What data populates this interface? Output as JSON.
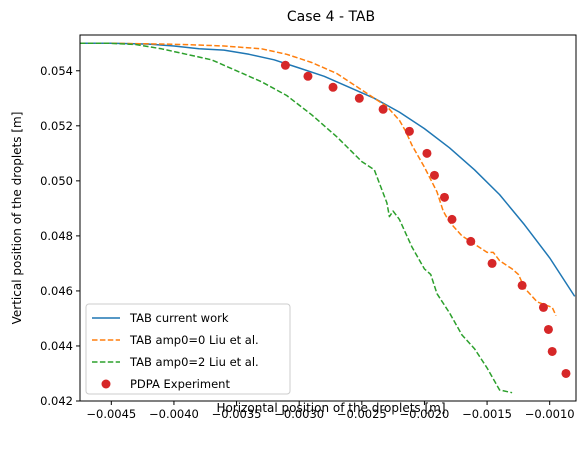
{
  "chart_data": {
    "type": "line",
    "title": "Case 4 - TAB",
    "xlabel": "Horizontal position of the droplets [m]",
    "ylabel": "Vertical position of the droplets [m]",
    "xlim": [
      -0.00475,
      -0.00079
    ],
    "ylim": [
      0.042,
      0.0553
    ],
    "xticks": [
      -0.0045,
      -0.004,
      -0.0035,
      -0.003,
      -0.0025,
      -0.002,
      -0.0015,
      -0.001
    ],
    "xtick_labels": [
      "−0.0045",
      "−0.0040",
      "−0.0035",
      "−0.0030",
      "−0.0025",
      "−0.0020",
      "−0.0015",
      "−0.0010"
    ],
    "yticks": [
      0.042,
      0.044,
      0.046,
      0.048,
      0.05,
      0.052,
      0.054
    ],
    "ytick_labels": [
      "0.042",
      "0.044",
      "0.046",
      "0.048",
      "0.050",
      "0.052",
      "0.054"
    ],
    "grid": false,
    "legend_position": "lower-left",
    "series": [
      {
        "name": "TAB current work",
        "style": "solid",
        "color": "#1f77b4",
        "x": [
          -0.00475,
          -0.0045,
          -0.0042,
          -0.004,
          -0.0038,
          -0.0036,
          -0.0034,
          -0.0032,
          -0.003,
          -0.0028,
          -0.0026,
          -0.0024,
          -0.0022,
          -0.002,
          -0.0018,
          -0.0016,
          -0.0014,
          -0.0012,
          -0.001,
          -0.0008
        ],
        "y": [
          0.055,
          0.055,
          0.05497,
          0.0549,
          0.0548,
          0.05475,
          0.0546,
          0.0544,
          0.0541,
          0.0538,
          0.0534,
          0.053,
          0.0525,
          0.0519,
          0.0512,
          0.0504,
          0.0495,
          0.0484,
          0.0472,
          0.0458
        ]
      },
      {
        "name": "TAB amp0=0 Liu et al.",
        "style": "dashed",
        "color": "#ff7f0e",
        "x": [
          -0.00475,
          -0.0045,
          -0.0042,
          -0.0039,
          -0.0036,
          -0.0033,
          -0.0031,
          -0.0029,
          -0.0027,
          -0.0025,
          -0.0023,
          -0.0022,
          -0.00215,
          -0.0021,
          -0.002,
          -0.0019,
          -0.00185,
          -0.0018,
          -0.0017,
          -0.0016,
          -0.0015,
          -0.00145,
          -0.0014,
          -0.0013,
          -0.00125,
          -0.0012,
          -0.0011,
          -0.00098,
          -0.00095
        ],
        "y": [
          0.055,
          0.055,
          0.05498,
          0.05495,
          0.0549,
          0.0548,
          0.0546,
          0.0543,
          0.0539,
          0.0533,
          0.0527,
          0.0522,
          0.0518,
          0.0513,
          0.0505,
          0.0496,
          0.0489,
          0.0485,
          0.048,
          0.0477,
          0.0474,
          0.0474,
          0.0471,
          0.0468,
          0.0466,
          0.0461,
          0.0456,
          0.0454,
          0.0451
        ]
      },
      {
        "name": "TAB amp0=2 Liu et al.",
        "style": "dashed",
        "color": "#2ca02c",
        "x": [
          -0.00475,
          -0.0045,
          -0.0043,
          -0.0041,
          -0.0039,
          -0.0037,
          -0.0035,
          -0.0033,
          -0.0031,
          -0.0029,
          -0.0027,
          -0.0025,
          -0.0024,
          -0.00235,
          -0.0023,
          -0.00228,
          -0.00225,
          -0.0022,
          -0.0021,
          -0.002,
          -0.00195,
          -0.0019,
          -0.0018,
          -0.0017,
          -0.0016,
          -0.0015,
          -0.0014,
          -0.0013
        ],
        "y": [
          0.055,
          0.055,
          0.05495,
          0.0548,
          0.0546,
          0.0544,
          0.054,
          0.0536,
          0.0531,
          0.0524,
          0.0516,
          0.0507,
          0.0504,
          0.0498,
          0.0492,
          0.0487,
          0.0489,
          0.0486,
          0.0476,
          0.0468,
          0.0466,
          0.0459,
          0.0452,
          0.0444,
          0.0439,
          0.0432,
          0.0424,
          0.0423
        ]
      },
      {
        "name": "PDPA Experiment",
        "style": "markers",
        "color": "#d62728",
        "x": [
          -0.00311,
          -0.00293,
          -0.00273,
          -0.00252,
          -0.00233,
          -0.00212,
          -0.00198,
          -0.00192,
          -0.00184,
          -0.00178,
          -0.00163,
          -0.00146,
          -0.00122,
          -0.00105,
          -0.00101,
          -0.00098,
          -0.00087
        ],
        "y": [
          0.0542,
          0.0538,
          0.0534,
          0.053,
          0.0526,
          0.0518,
          0.051,
          0.0502,
          0.0494,
          0.0486,
          0.0478,
          0.047,
          0.0462,
          0.0454,
          0.0446,
          0.0438,
          0.043
        ]
      }
    ]
  }
}
